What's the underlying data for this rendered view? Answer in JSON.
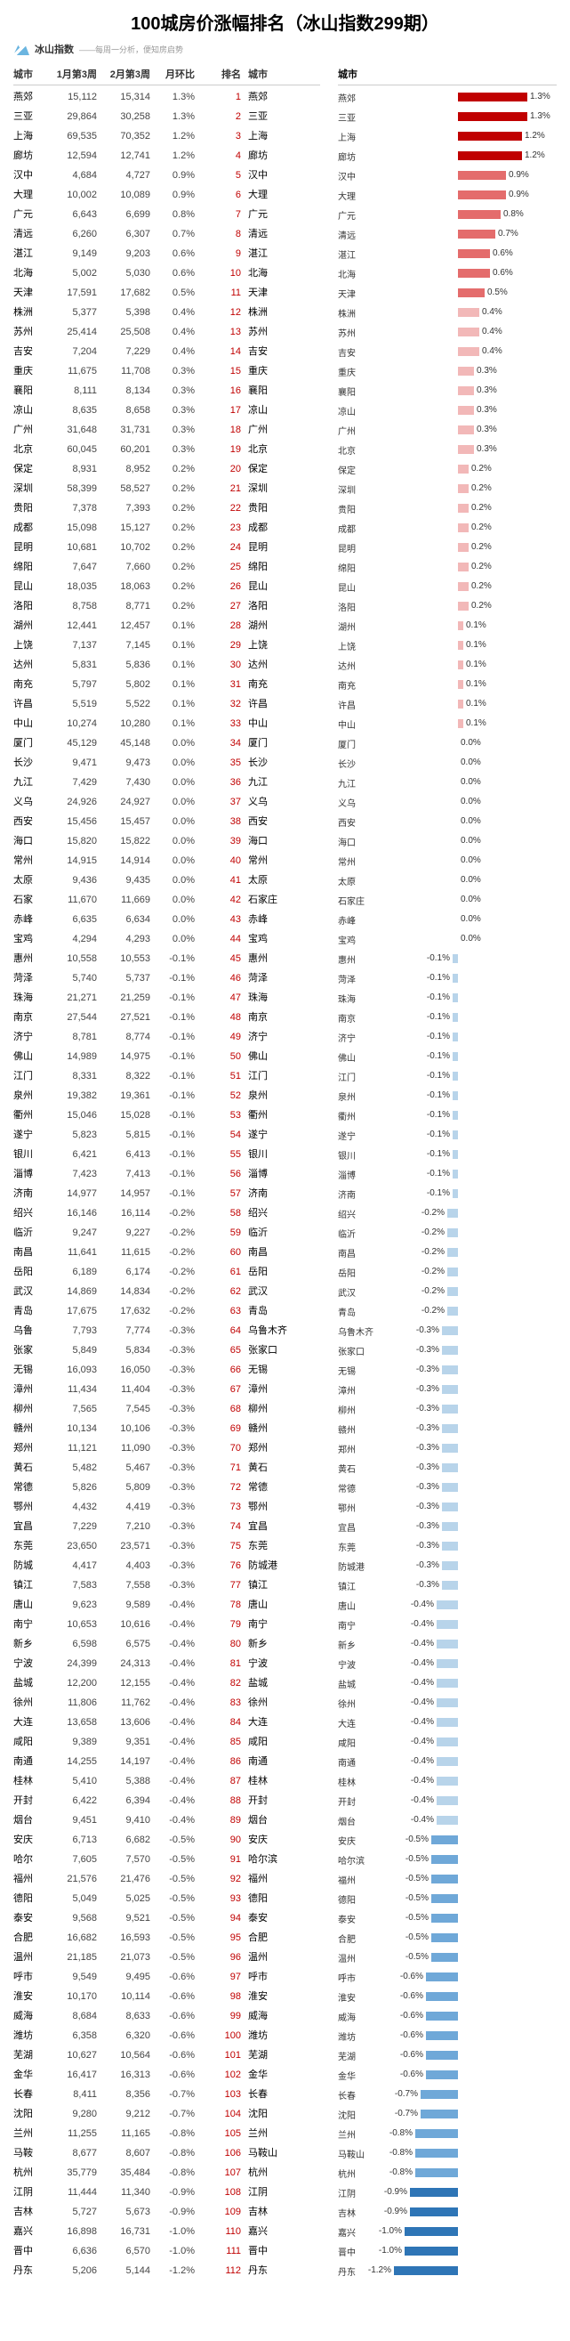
{
  "title": "100城房价涨幅排名（冰山指数299期）",
  "logo": {
    "name": "冰山指数",
    "tagline": "——每周一分析，便知房启势"
  },
  "headers": {
    "city": "城市",
    "w1": "1月第3周",
    "w2": "2月第3周",
    "pct": "月环比",
    "rank": "排名",
    "city2": "城市"
  },
  "chart": {
    "axisCenter": 85,
    "pxPerPct": 60,
    "colorUpDark": "#c00000",
    "colorUpMid": "#e46c6c",
    "colorUpLight": "#f2b8b8",
    "colorZero": "#d9d9d9",
    "colorDnLight": "#b8d4ea",
    "colorDnMid": "#6fa8d8",
    "colorDnDark": "#2e75b6"
  },
  "rows": [
    {
      "city": "燕郊",
      "w1": "15,112",
      "w2": "15,314",
      "pct": 1.3,
      "rank": 1,
      "city2": "燕郊",
      "bpct": 1.3
    },
    {
      "city": "三亚",
      "w1": "29,864",
      "w2": "30,258",
      "pct": 1.3,
      "rank": 2,
      "city2": "三亚",
      "bpct": 1.3
    },
    {
      "city": "上海",
      "w1": "69,535",
      "w2": "70,352",
      "pct": 1.2,
      "rank": 3,
      "city2": "上海",
      "bpct": 1.2
    },
    {
      "city": "廊坊",
      "w1": "12,594",
      "w2": "12,741",
      "pct": 1.2,
      "rank": 4,
      "city2": "廊坊",
      "bpct": 1.2
    },
    {
      "city": "汉中",
      "w1": "4,684",
      "w2": "4,727",
      "pct": 0.9,
      "rank": 5,
      "city2": "汉中",
      "bpct": 0.9
    },
    {
      "city": "大理",
      "w1": "10,002",
      "w2": "10,089",
      "pct": 0.9,
      "rank": 6,
      "city2": "大理",
      "bpct": 0.9
    },
    {
      "city": "广元",
      "w1": "6,643",
      "w2": "6,699",
      "pct": 0.8,
      "rank": 7,
      "city2": "广元",
      "bpct": 0.8
    },
    {
      "city": "清远",
      "w1": "6,260",
      "w2": "6,307",
      "pct": 0.7,
      "rank": 8,
      "city2": "清远",
      "bpct": 0.7
    },
    {
      "city": "湛江",
      "w1": "9,149",
      "w2": "9,203",
      "pct": 0.6,
      "rank": 9,
      "city2": "湛江",
      "bpct": 0.6
    },
    {
      "city": "北海",
      "w1": "5,002",
      "w2": "5,030",
      "pct": 0.6,
      "rank": 10,
      "city2": "北海",
      "bpct": 0.6
    },
    {
      "city": "天津",
      "w1": "17,591",
      "w2": "17,682",
      "pct": 0.5,
      "rank": 11,
      "city2": "天津",
      "bpct": 0.5
    },
    {
      "city": "株洲",
      "w1": "5,377",
      "w2": "5,398",
      "pct": 0.4,
      "rank": 12,
      "city2": "株洲",
      "bpct": 0.4
    },
    {
      "city": "苏州",
      "w1": "25,414",
      "w2": "25,508",
      "pct": 0.4,
      "rank": 13,
      "city2": "苏州",
      "bpct": 0.4
    },
    {
      "city": "吉安",
      "w1": "7,204",
      "w2": "7,229",
      "pct": 0.4,
      "rank": 14,
      "city2": "吉安",
      "bpct": 0.4
    },
    {
      "city": "重庆",
      "w1": "11,675",
      "w2": "11,708",
      "pct": 0.3,
      "rank": 15,
      "city2": "重庆",
      "bpct": 0.3
    },
    {
      "city": "襄阳",
      "w1": "8,111",
      "w2": "8,134",
      "pct": 0.3,
      "rank": 16,
      "city2": "襄阳",
      "bpct": 0.3
    },
    {
      "city": "凉山",
      "w1": "8,635",
      "w2": "8,658",
      "pct": 0.3,
      "rank": 17,
      "city2": "凉山",
      "bpct": 0.3
    },
    {
      "city": "广州",
      "w1": "31,648",
      "w2": "31,731",
      "pct": 0.3,
      "rank": 18,
      "city2": "广州",
      "bpct": 0.3
    },
    {
      "city": "北京",
      "w1": "60,045",
      "w2": "60,201",
      "pct": 0.3,
      "rank": 19,
      "city2": "北京",
      "bpct": 0.3
    },
    {
      "city": "保定",
      "w1": "8,931",
      "w2": "8,952",
      "pct": 0.2,
      "rank": 20,
      "city2": "保定",
      "bpct": 0.2
    },
    {
      "city": "深圳",
      "w1": "58,399",
      "w2": "58,527",
      "pct": 0.2,
      "rank": 21,
      "city2": "深圳",
      "bpct": 0.2
    },
    {
      "city": "贵阳",
      "w1": "7,378",
      "w2": "7,393",
      "pct": 0.2,
      "rank": 22,
      "city2": "贵阳",
      "bpct": 0.2
    },
    {
      "city": "成都",
      "w1": "15,098",
      "w2": "15,127",
      "pct": 0.2,
      "rank": 23,
      "city2": "成都",
      "bpct": 0.2
    },
    {
      "city": "昆明",
      "w1": "10,681",
      "w2": "10,702",
      "pct": 0.2,
      "rank": 24,
      "city2": "昆明",
      "bpct": 0.2
    },
    {
      "city": "绵阳",
      "w1": "7,647",
      "w2": "7,660",
      "pct": 0.2,
      "rank": 25,
      "city2": "绵阳",
      "bpct": 0.2
    },
    {
      "city": "昆山",
      "w1": "18,035",
      "w2": "18,063",
      "pct": 0.2,
      "rank": 26,
      "city2": "昆山",
      "bpct": 0.2
    },
    {
      "city": "洛阳",
      "w1": "8,758",
      "w2": "8,771",
      "pct": 0.2,
      "rank": 27,
      "city2": "洛阳",
      "bpct": 0.2
    },
    {
      "city": "湖州",
      "w1": "12,441",
      "w2": "12,457",
      "pct": 0.1,
      "rank": 28,
      "city2": "湖州",
      "bpct": 0.1
    },
    {
      "city": "上饶",
      "w1": "7,137",
      "w2": "7,145",
      "pct": 0.1,
      "rank": 29,
      "city2": "上饶",
      "bpct": 0.1
    },
    {
      "city": "达州",
      "w1": "5,831",
      "w2": "5,836",
      "pct": 0.1,
      "rank": 30,
      "city2": "达州",
      "bpct": 0.1
    },
    {
      "city": "南充",
      "w1": "5,797",
      "w2": "5,802",
      "pct": 0.1,
      "rank": 31,
      "city2": "南充",
      "bpct": 0.1
    },
    {
      "city": "许昌",
      "w1": "5,519",
      "w2": "5,522",
      "pct": 0.1,
      "rank": 32,
      "city2": "许昌",
      "bpct": 0.1
    },
    {
      "city": "中山",
      "w1": "10,274",
      "w2": "10,280",
      "pct": 0.1,
      "rank": 33,
      "city2": "中山",
      "bpct": 0.1
    },
    {
      "city": "厦门",
      "w1": "45,129",
      "w2": "45,148",
      "pct": 0.0,
      "rank": 34,
      "city2": "厦门",
      "bpct": 0.0
    },
    {
      "city": "长沙",
      "w1": "9,471",
      "w2": "9,473",
      "pct": 0.0,
      "rank": 35,
      "city2": "长沙",
      "bpct": 0.0
    },
    {
      "city": "九江",
      "w1": "7,429",
      "w2": "7,430",
      "pct": 0.0,
      "rank": 36,
      "city2": "九江",
      "bpct": 0.0
    },
    {
      "city": "义乌",
      "w1": "24,926",
      "w2": "24,927",
      "pct": 0.0,
      "rank": 37,
      "city2": "义乌",
      "bpct": 0.0
    },
    {
      "city": "西安",
      "w1": "15,456",
      "w2": "15,457",
      "pct": 0.0,
      "rank": 38,
      "city2": "西安",
      "bpct": 0.0
    },
    {
      "city": "海口",
      "w1": "15,820",
      "w2": "15,822",
      "pct": 0.0,
      "rank": 39,
      "city2": "海口",
      "bpct": 0.0
    },
    {
      "city": "常州",
      "w1": "14,915",
      "w2": "14,914",
      "pct": 0.0,
      "rank": 40,
      "city2": "常州",
      "bpct": 0.0
    },
    {
      "city": "太原",
      "w1": "9,436",
      "w2": "9,435",
      "pct": 0.0,
      "rank": 41,
      "city2": "太原",
      "bpct": 0.0
    },
    {
      "city": "石家",
      "w1": "11,670",
      "w2": "11,669",
      "pct": 0.0,
      "rank": 42,
      "city2": "石家庄",
      "bpct": 0.0
    },
    {
      "city": "赤峰",
      "w1": "6,635",
      "w2": "6,634",
      "pct": 0.0,
      "rank": 43,
      "city2": "赤峰",
      "bpct": 0.0
    },
    {
      "city": "宝鸡",
      "w1": "4,294",
      "w2": "4,293",
      "pct": 0.0,
      "rank": 44,
      "city2": "宝鸡",
      "bpct": 0.0
    },
    {
      "city": "惠州",
      "w1": "10,558",
      "w2": "10,553",
      "pct": -0.1,
      "rank": 45,
      "city2": "惠州",
      "bpct": -0.1
    },
    {
      "city": "菏泽",
      "w1": "5,740",
      "w2": "5,737",
      "pct": -0.1,
      "rank": 46,
      "city2": "菏泽",
      "bpct": -0.1
    },
    {
      "city": "珠海",
      "w1": "21,271",
      "w2": "21,259",
      "pct": -0.1,
      "rank": 47,
      "city2": "珠海",
      "bpct": -0.1
    },
    {
      "city": "南京",
      "w1": "27,544",
      "w2": "27,521",
      "pct": -0.1,
      "rank": 48,
      "city2": "南京",
      "bpct": -0.1
    },
    {
      "city": "济宁",
      "w1": "8,781",
      "w2": "8,774",
      "pct": -0.1,
      "rank": 49,
      "city2": "济宁",
      "bpct": -0.1
    },
    {
      "city": "佛山",
      "w1": "14,989",
      "w2": "14,975",
      "pct": -0.1,
      "rank": 50,
      "city2": "佛山",
      "bpct": -0.1
    },
    {
      "city": "江门",
      "w1": "8,331",
      "w2": "8,322",
      "pct": -0.1,
      "rank": 51,
      "city2": "江门",
      "bpct": -0.1
    },
    {
      "city": "泉州",
      "w1": "19,382",
      "w2": "19,361",
      "pct": -0.1,
      "rank": 52,
      "city2": "泉州",
      "bpct": -0.1
    },
    {
      "city": "衢州",
      "w1": "15,046",
      "w2": "15,028",
      "pct": -0.1,
      "rank": 53,
      "city2": "衢州",
      "bpct": -0.1
    },
    {
      "city": "遂宁",
      "w1": "5,823",
      "w2": "5,815",
      "pct": -0.1,
      "rank": 54,
      "city2": "遂宁",
      "bpct": -0.1
    },
    {
      "city": "银川",
      "w1": "6,421",
      "w2": "6,413",
      "pct": -0.1,
      "rank": 55,
      "city2": "银川",
      "bpct": -0.1
    },
    {
      "city": "淄博",
      "w1": "7,423",
      "w2": "7,413",
      "pct": -0.1,
      "rank": 56,
      "city2": "淄博",
      "bpct": -0.1
    },
    {
      "city": "济南",
      "w1": "14,977",
      "w2": "14,957",
      "pct": -0.1,
      "rank": 57,
      "city2": "济南",
      "bpct": -0.1
    },
    {
      "city": "绍兴",
      "w1": "16,146",
      "w2": "16,114",
      "pct": -0.2,
      "rank": 58,
      "city2": "绍兴",
      "bpct": -0.2
    },
    {
      "city": "临沂",
      "w1": "9,247",
      "w2": "9,227",
      "pct": -0.2,
      "rank": 59,
      "city2": "临沂",
      "bpct": -0.2
    },
    {
      "city": "南昌",
      "w1": "11,641",
      "w2": "11,615",
      "pct": -0.2,
      "rank": 60,
      "city2": "南昌",
      "bpct": -0.2
    },
    {
      "city": "岳阳",
      "w1": "6,189",
      "w2": "6,174",
      "pct": -0.2,
      "rank": 61,
      "city2": "岳阳",
      "bpct": -0.2
    },
    {
      "city": "武汉",
      "w1": "14,869",
      "w2": "14,834",
      "pct": -0.2,
      "rank": 62,
      "city2": "武汉",
      "bpct": -0.2
    },
    {
      "city": "青岛",
      "w1": "17,675",
      "w2": "17,632",
      "pct": -0.2,
      "rank": 63,
      "city2": "青岛",
      "bpct": -0.2
    },
    {
      "city": "乌鲁",
      "w1": "7,793",
      "w2": "7,774",
      "pct": -0.3,
      "rank": 64,
      "city2": "乌鲁木齐",
      "bpct": -0.3
    },
    {
      "city": "张家",
      "w1": "5,849",
      "w2": "5,834",
      "pct": -0.3,
      "rank": 65,
      "city2": "张家口",
      "bpct": -0.3
    },
    {
      "city": "无锡",
      "w1": "16,093",
      "w2": "16,050",
      "pct": -0.3,
      "rank": 66,
      "city2": "无锡",
      "bpct": -0.3
    },
    {
      "city": "漳州",
      "w1": "11,434",
      "w2": "11,404",
      "pct": -0.3,
      "rank": 67,
      "city2": "漳州",
      "bpct": -0.3
    },
    {
      "city": "柳州",
      "w1": "7,565",
      "w2": "7,545",
      "pct": -0.3,
      "rank": 68,
      "city2": "柳州",
      "bpct": -0.3
    },
    {
      "city": "赣州",
      "w1": "10,134",
      "w2": "10,106",
      "pct": -0.3,
      "rank": 69,
      "city2": "赣州",
      "bpct": -0.3
    },
    {
      "city": "郑州",
      "w1": "11,121",
      "w2": "11,090",
      "pct": -0.3,
      "rank": 70,
      "city2": "郑州",
      "bpct": -0.3
    },
    {
      "city": "黄石",
      "w1": "5,482",
      "w2": "5,467",
      "pct": -0.3,
      "rank": 71,
      "city2": "黄石",
      "bpct": -0.3
    },
    {
      "city": "常德",
      "w1": "5,826",
      "w2": "5,809",
      "pct": -0.3,
      "rank": 72,
      "city2": "常德",
      "bpct": -0.3
    },
    {
      "city": "鄂州",
      "w1": "4,432",
      "w2": "4,419",
      "pct": -0.3,
      "rank": 73,
      "city2": "鄂州",
      "bpct": -0.3
    },
    {
      "city": "宜昌",
      "w1": "7,229",
      "w2": "7,210",
      "pct": -0.3,
      "rank": 74,
      "city2": "宜昌",
      "bpct": -0.3
    },
    {
      "city": "东莞",
      "w1": "23,650",
      "w2": "23,571",
      "pct": -0.3,
      "rank": 75,
      "city2": "东莞",
      "bpct": -0.3
    },
    {
      "city": "防城",
      "w1": "4,417",
      "w2": "4,403",
      "pct": -0.3,
      "rank": 76,
      "city2": "防城港",
      "bpct": -0.3
    },
    {
      "city": "镇江",
      "w1": "7,583",
      "w2": "7,558",
      "pct": -0.3,
      "rank": 77,
      "city2": "镇江",
      "bpct": -0.3
    },
    {
      "city": "唐山",
      "w1": "9,623",
      "w2": "9,589",
      "pct": -0.4,
      "rank": 78,
      "city2": "唐山",
      "bpct": -0.4
    },
    {
      "city": "南宁",
      "w1": "10,653",
      "w2": "10,616",
      "pct": -0.4,
      "rank": 79,
      "city2": "南宁",
      "bpct": -0.4
    },
    {
      "city": "新乡",
      "w1": "6,598",
      "w2": "6,575",
      "pct": -0.4,
      "rank": 80,
      "city2": "新乡",
      "bpct": -0.4
    },
    {
      "city": "宁波",
      "w1": "24,399",
      "w2": "24,313",
      "pct": -0.4,
      "rank": 81,
      "city2": "宁波",
      "bpct": -0.4
    },
    {
      "city": "盐城",
      "w1": "12,200",
      "w2": "12,155",
      "pct": -0.4,
      "rank": 82,
      "city2": "盐城",
      "bpct": -0.4
    },
    {
      "city": "徐州",
      "w1": "11,806",
      "w2": "11,762",
      "pct": -0.4,
      "rank": 83,
      "city2": "徐州",
      "bpct": -0.4
    },
    {
      "city": "大连",
      "w1": "13,658",
      "w2": "13,606",
      "pct": -0.4,
      "rank": 84,
      "city2": "大连",
      "bpct": -0.4
    },
    {
      "city": "咸阳",
      "w1": "9,389",
      "w2": "9,351",
      "pct": -0.4,
      "rank": 85,
      "city2": "咸阳",
      "bpct": -0.4
    },
    {
      "city": "南通",
      "w1": "14,255",
      "w2": "14,197",
      "pct": -0.4,
      "rank": 86,
      "city2": "南通",
      "bpct": -0.4
    },
    {
      "city": "桂林",
      "w1": "5,410",
      "w2": "5,388",
      "pct": -0.4,
      "rank": 87,
      "city2": "桂林",
      "bpct": -0.4
    },
    {
      "city": "开封",
      "w1": "6,422",
      "w2": "6,394",
      "pct": -0.4,
      "rank": 88,
      "city2": "开封",
      "bpct": -0.4
    },
    {
      "city": "烟台",
      "w1": "9,451",
      "w2": "9,410",
      "pct": -0.4,
      "rank": 89,
      "city2": "烟台",
      "bpct": -0.4
    },
    {
      "city": "安庆",
      "w1": "6,713",
      "w2": "6,682",
      "pct": -0.5,
      "rank": 90,
      "city2": "安庆",
      "bpct": -0.5
    },
    {
      "city": "哈尔",
      "w1": "7,605",
      "w2": "7,570",
      "pct": -0.5,
      "rank": 91,
      "city2": "哈尔滨",
      "bpct": -0.5
    },
    {
      "city": "福州",
      "w1": "21,576",
      "w2": "21,476",
      "pct": -0.5,
      "rank": 92,
      "city2": "福州",
      "bpct": -0.5
    },
    {
      "city": "德阳",
      "w1": "5,049",
      "w2": "5,025",
      "pct": -0.5,
      "rank": 93,
      "city2": "德阳",
      "bpct": -0.5
    },
    {
      "city": "泰安",
      "w1": "9,568",
      "w2": "9,521",
      "pct": -0.5,
      "rank": 94,
      "city2": "泰安",
      "bpct": -0.5
    },
    {
      "city": "合肥",
      "w1": "16,682",
      "w2": "16,593",
      "pct": -0.5,
      "rank": 95,
      "city2": "合肥",
      "bpct": -0.5
    },
    {
      "city": "温州",
      "w1": "21,185",
      "w2": "21,073",
      "pct": -0.5,
      "rank": 96,
      "city2": "温州",
      "bpct": -0.5
    },
    {
      "city": "呼市",
      "w1": "9,549",
      "w2": "9,495",
      "pct": -0.6,
      "rank": 97,
      "city2": "呼市",
      "bpct": -0.6
    },
    {
      "city": "淮安",
      "w1": "10,170",
      "w2": "10,114",
      "pct": -0.6,
      "rank": 98,
      "city2": "淮安",
      "bpct": -0.6
    },
    {
      "city": "威海",
      "w1": "8,684",
      "w2": "8,633",
      "pct": -0.6,
      "rank": 99,
      "city2": "威海",
      "bpct": -0.6
    },
    {
      "city": "潍坊",
      "w1": "6,358",
      "w2": "6,320",
      "pct": -0.6,
      "rank": 100,
      "city2": "潍坊",
      "bpct": -0.6
    },
    {
      "city": "芜湖",
      "w1": "10,627",
      "w2": "10,564",
      "pct": -0.6,
      "rank": 101,
      "city2": "芜湖",
      "bpct": -0.6
    },
    {
      "city": "金华",
      "w1": "16,417",
      "w2": "16,313",
      "pct": -0.6,
      "rank": 102,
      "city2": "金华",
      "bpct": -0.6
    },
    {
      "city": "长春",
      "w1": "8,411",
      "w2": "8,356",
      "pct": -0.7,
      "rank": 103,
      "city2": "长春",
      "bpct": -0.7
    },
    {
      "city": "沈阳",
      "w1": "9,280",
      "w2": "9,212",
      "pct": -0.7,
      "rank": 104,
      "city2": "沈阳",
      "bpct": -0.7
    },
    {
      "city": "兰州",
      "w1": "11,255",
      "w2": "11,165",
      "pct": -0.8,
      "rank": 105,
      "city2": "兰州",
      "bpct": -0.8
    },
    {
      "city": "马鞍",
      "w1": "8,677",
      "w2": "8,607",
      "pct": -0.8,
      "rank": 106,
      "city2": "马鞍山",
      "bpct": -0.8
    },
    {
      "city": "杭州",
      "w1": "35,779",
      "w2": "35,484",
      "pct": -0.8,
      "rank": 107,
      "city2": "杭州",
      "bpct": -0.8
    },
    {
      "city": "江阴",
      "w1": "11,444",
      "w2": "11,340",
      "pct": -0.9,
      "rank": 108,
      "city2": "江阴",
      "bpct": -0.9
    },
    {
      "city": "吉林",
      "w1": "5,727",
      "w2": "5,673",
      "pct": -0.9,
      "rank": 109,
      "city2": "吉林",
      "bpct": -0.9
    },
    {
      "city": "嘉兴",
      "w1": "16,898",
      "w2": "16,731",
      "pct": -1.0,
      "rank": 110,
      "city2": "嘉兴",
      "bpct": -1.0
    },
    {
      "city": "晋中",
      "w1": "6,636",
      "w2": "6,570",
      "pct": -1.0,
      "rank": 111,
      "city2": "晋中",
      "bpct": -1.0
    },
    {
      "city": "丹东",
      "w1": "5,206",
      "w2": "5,144",
      "pct": -1.2,
      "rank": 112,
      "city2": "丹东",
      "bpct": -1.2
    }
  ]
}
